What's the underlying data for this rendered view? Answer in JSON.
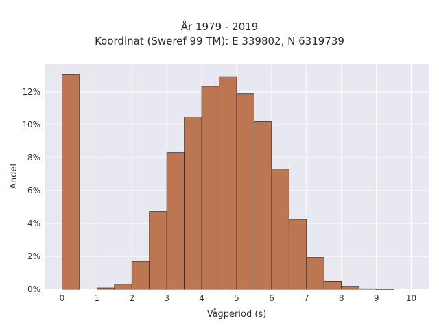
{
  "chart_data": {
    "type": "bar",
    "title": "År 1979 - 2019",
    "subtitle": "Koordinat (Sweref 99 TM): E 339802, N 6319739",
    "xlabel": "Vågperiod (s)",
    "ylabel": "Andel",
    "xlim": [
      -0.5,
      10.5
    ],
    "ylim": [
      0,
      0.137
    ],
    "grid": true,
    "bin_width": 0.5,
    "x_ticks": [
      0,
      1,
      2,
      3,
      4,
      5,
      6,
      7,
      8,
      9,
      10
    ],
    "y_ticks": [
      0,
      0.02,
      0.04,
      0.06,
      0.08,
      0.1,
      0.12
    ],
    "y_tick_labels": [
      "0%",
      "2%",
      "4%",
      "6%",
      "8%",
      "10%",
      "12%"
    ],
    "bins": [
      {
        "x0": 0.0,
        "value": 0.1305
      },
      {
        "x0": 1.0,
        "value": 0.0008
      },
      {
        "x0": 1.5,
        "value": 0.003
      },
      {
        "x0": 2.0,
        "value": 0.0168
      },
      {
        "x0": 2.5,
        "value": 0.0472
      },
      {
        "x0": 3.0,
        "value": 0.083
      },
      {
        "x0": 3.5,
        "value": 0.1047
      },
      {
        "x0": 4.0,
        "value": 0.1233
      },
      {
        "x0": 4.5,
        "value": 0.129
      },
      {
        "x0": 5.0,
        "value": 0.1188
      },
      {
        "x0": 5.5,
        "value": 0.1018
      },
      {
        "x0": 6.0,
        "value": 0.073
      },
      {
        "x0": 6.5,
        "value": 0.0425
      },
      {
        "x0": 7.0,
        "value": 0.0193
      },
      {
        "x0": 7.5,
        "value": 0.0048
      },
      {
        "x0": 8.0,
        "value": 0.0018
      },
      {
        "x0": 8.5,
        "value": 0.0003
      },
      {
        "x0": 9.0,
        "value": 0.0001
      }
    ],
    "colors": {
      "bar_fill": "#bc7651",
      "bar_stroke": "#3d2418",
      "plot_background": "#e8e8f0",
      "grid": "#ffffff"
    }
  }
}
